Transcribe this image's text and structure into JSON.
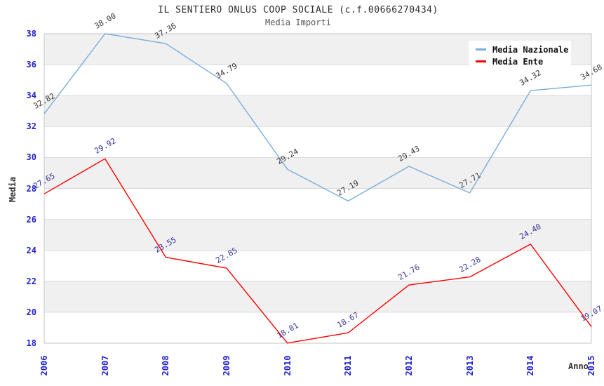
{
  "chart": {
    "title": "IL SENTIERO ONLUS COOP SOCIALE (c.f.00666270434)",
    "subtitle": "Media Importi"
  },
  "chart_data": {
    "type": "line",
    "x": [
      2006,
      2007,
      2008,
      2009,
      2010,
      2011,
      2012,
      2013,
      2014,
      2015
    ],
    "xlabel": "Anno",
    "ylabel": "Media",
    "ylim": [
      18,
      38
    ],
    "ytick_step": 2,
    "grid": "horizontal gridlines with alternating gray/white bands every 2 units",
    "legend_position": "top-right",
    "point_labels_visible": true,
    "series": [
      {
        "name": "Media Nazionale",
        "color": "#7aaddc",
        "label_color": "#3a3a3a",
        "values": [
          32.82,
          38.0,
          37.36,
          34.79,
          29.24,
          27.19,
          29.43,
          27.71,
          34.32,
          34.68
        ]
      },
      {
        "name": "Media Ente",
        "color": "#ff0000",
        "label_color": "#333399",
        "values": [
          27.65,
          29.92,
          23.55,
          22.85,
          18.01,
          18.67,
          21.76,
          22.28,
          24.4,
          19.07
        ]
      }
    ]
  },
  "colors": {
    "band_gray": "#f0f0f0",
    "gridline": "#d9d9d9",
    "plot_border": "#c6c6c6",
    "tick_label_blue": "#2222cc",
    "title_text": "#2e2e2e",
    "subtitle_text": "#555555",
    "axis_title_text": "#333333"
  }
}
